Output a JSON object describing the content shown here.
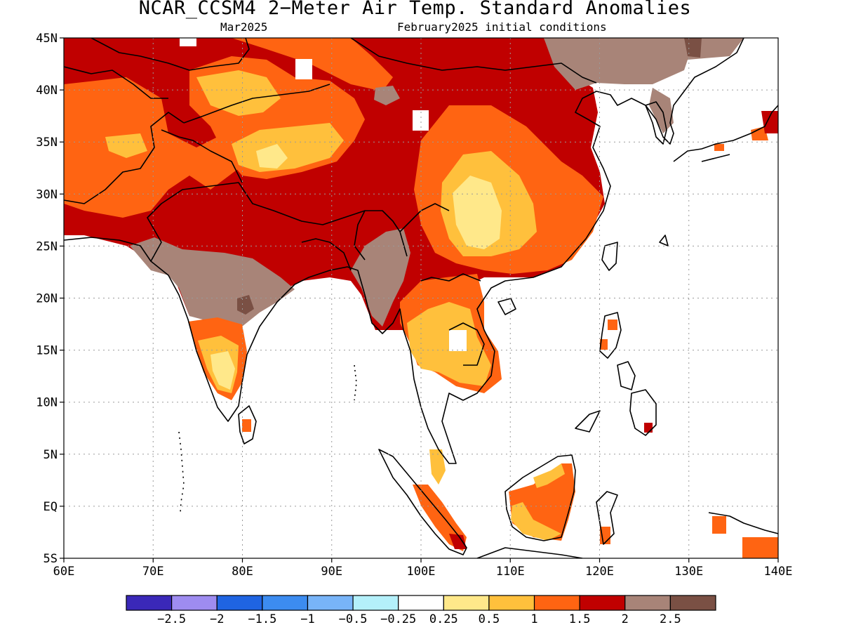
{
  "title": "NCAR_CCSM4 2−Meter Air Temp. Standard Anomalies",
  "subtitle_left": "Mar2025",
  "subtitle_right": "February2025 initial conditions",
  "map": {
    "lat_labels": [
      "45N",
      "40N",
      "35N",
      "30N",
      "25N",
      "20N",
      "15N",
      "10N",
      "5N",
      "EQ",
      "5S"
    ],
    "lon_labels": [
      "60E",
      "70E",
      "80E",
      "90E",
      "100E",
      "110E",
      "120E",
      "130E",
      "140E"
    ],
    "lat_range": [
      -5,
      45
    ],
    "lon_range": [
      60,
      140
    ],
    "gridlines": true
  },
  "colorbar": {
    "colors": [
      "#3a28b8",
      "#9e8cf0",
      "#1f64e2",
      "#3c8cf0",
      "#78b4f8",
      "#b4f0fa",
      "#ffffff",
      "#ffe88a",
      "#ffc03c",
      "#ff6412",
      "#c00000",
      "#a88478",
      "#7a5044"
    ],
    "labels": [
      "−2.5",
      "−2",
      "−1.5",
      "−1",
      "−0.5",
      "−0.25",
      "0.25",
      "0.5",
      "1",
      "1.5",
      "2",
      "2.5"
    ]
  },
  "palette": {
    "level_05": "#ffe88a",
    "level_1": "#ffc03c",
    "level_15": "#ff6412",
    "level_2": "#c00000",
    "level_25": "#a88478",
    "level_3": "#7a5044"
  }
}
